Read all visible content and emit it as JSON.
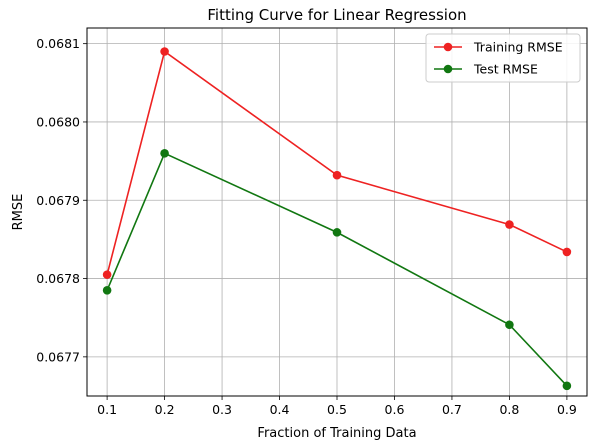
{
  "chart_data": {
    "type": "line",
    "title": "Fitting Curve for Linear Regression",
    "xlabel": "Fraction of Training Data",
    "ylabel": "RMSE",
    "xlim": [
      0.065,
      0.935
    ],
    "ylim": [
      0.06765,
      0.06812
    ],
    "xticks": [
      0.1,
      0.2,
      0.3,
      0.4,
      0.5,
      0.6,
      0.7,
      0.8,
      0.9
    ],
    "xtick_labels": [
      "0.1",
      "0.2",
      "0.3",
      "0.4",
      "0.5",
      "0.6",
      "0.7",
      "0.8",
      "0.9"
    ],
    "yticks": [
      0.0677,
      0.0678,
      0.0679,
      0.068,
      0.0681
    ],
    "ytick_labels": [
      "0.0677",
      "0.0678",
      "0.0679",
      "0.0680",
      "0.0681"
    ],
    "grid": true,
    "legend_position": "top-right",
    "x": [
      0.1,
      0.2,
      0.5,
      0.8,
      0.9
    ],
    "series": [
      {
        "name": "Training RMSE",
        "color": "#ee2222",
        "values": [
          0.067805,
          0.06809,
          0.067932,
          0.067869,
          0.067834
        ]
      },
      {
        "name": "Test RMSE",
        "color": "#117711",
        "values": [
          0.067785,
          0.06796,
          0.067859,
          0.067741,
          0.067663
        ]
      }
    ]
  }
}
